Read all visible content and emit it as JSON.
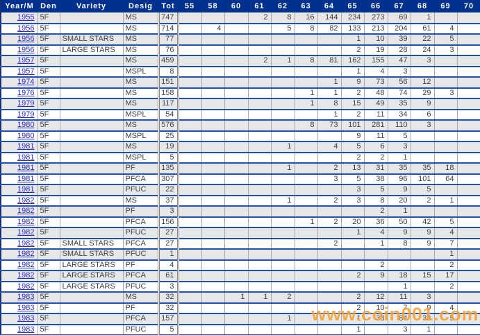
{
  "table": {
    "headers": [
      "Year/M",
      "Den",
      "Variety",
      "Desig",
      "Tot",
      "55",
      "58",
      "60",
      "61",
      "62",
      "63",
      "64",
      "65",
      "66",
      "67",
      "68",
      "69",
      "70"
    ],
    "rows": [
      {
        "year": "1955",
        "den": "5F",
        "variety": "",
        "desig": "MS",
        "tot": "747",
        "grades": {
          "61": "2",
          "62": "8",
          "63": "16",
          "64": "144",
          "65": "234",
          "66": "273",
          "67": "69",
          "68": "1"
        }
      },
      {
        "year": "1956",
        "den": "5F",
        "variety": "",
        "desig": "MS",
        "tot": "714",
        "grades": {
          "58": "4",
          "62": "5",
          "63": "8",
          "64": "82",
          "65": "133",
          "66": "213",
          "67": "204",
          "68": "61",
          "69": "4"
        }
      },
      {
        "year": "1956",
        "den": "5F",
        "variety": "SMALL STARS",
        "desig": "MS",
        "tot": "77",
        "grades": {
          "65": "1",
          "66": "10",
          "67": "39",
          "68": "22",
          "69": "5"
        }
      },
      {
        "year": "1956",
        "den": "5F",
        "variety": "LARGE STARS",
        "desig": "MS",
        "tot": "76",
        "grades": {
          "65": "2",
          "66": "19",
          "67": "28",
          "68": "24",
          "69": "3"
        }
      },
      {
        "year": "1957",
        "den": "5F",
        "variety": "",
        "desig": "MS",
        "tot": "459",
        "grades": {
          "61": "2",
          "62": "1",
          "63": "8",
          "64": "81",
          "65": "162",
          "66": "155",
          "67": "47",
          "68": "3"
        }
      },
      {
        "year": "1957",
        "den": "5F",
        "variety": "",
        "desig": "MSPL",
        "tot": "8",
        "grades": {
          "65": "1",
          "66": "4",
          "67": "3"
        }
      },
      {
        "year": "1974",
        "den": "5F",
        "variety": "",
        "desig": "MS",
        "tot": "151",
        "grades": {
          "64": "1",
          "65": "9",
          "66": "73",
          "67": "56",
          "68": "12"
        }
      },
      {
        "year": "1976",
        "den": "5F",
        "variety": "",
        "desig": "MS",
        "tot": "158",
        "grades": {
          "63": "1",
          "64": "1",
          "65": "2",
          "66": "48",
          "67": "74",
          "68": "29",
          "69": "3"
        }
      },
      {
        "year": "1979",
        "den": "5F",
        "variety": "",
        "desig": "MS",
        "tot": "117",
        "grades": {
          "63": "1",
          "64": "8",
          "65": "15",
          "66": "49",
          "67": "35",
          "68": "9"
        }
      },
      {
        "year": "1979",
        "den": "5F",
        "variety": "",
        "desig": "MSPL",
        "tot": "54",
        "grades": {
          "64": "1",
          "65": "2",
          "66": "11",
          "67": "34",
          "68": "6"
        }
      },
      {
        "year": "1980",
        "den": "5F",
        "variety": "",
        "desig": "MS",
        "tot": "576",
        "grades": {
          "63": "8",
          "64": "73",
          "65": "101",
          "66": "281",
          "67": "110",
          "68": "3"
        }
      },
      {
        "year": "1980",
        "den": "5F",
        "variety": "",
        "desig": "MSPL",
        "tot": "25",
        "grades": {
          "65": "9",
          "66": "11",
          "67": "5"
        }
      },
      {
        "year": "1981",
        "den": "5F",
        "variety": "",
        "desig": "MS",
        "tot": "19",
        "grades": {
          "62": "1",
          "64": "4",
          "65": "5",
          "66": "6",
          "67": "3"
        }
      },
      {
        "year": "1981",
        "den": "5F",
        "variety": "",
        "desig": "MSPL",
        "tot": "5",
        "grades": {
          "65": "2",
          "66": "2",
          "67": "1"
        }
      },
      {
        "year": "1981",
        "den": "5F",
        "variety": "",
        "desig": "PF",
        "tot": "135",
        "grades": {
          "62": "1",
          "64": "2",
          "65": "13",
          "66": "31",
          "67": "35",
          "68": "35",
          "69": "18"
        }
      },
      {
        "year": "1981",
        "den": "5F",
        "variety": "",
        "desig": "PFCA",
        "tot": "307",
        "grades": {
          "64": "3",
          "65": "5",
          "66": "38",
          "67": "96",
          "68": "101",
          "69": "64"
        }
      },
      {
        "year": "1981",
        "den": "5F",
        "variety": "",
        "desig": "PFUC",
        "tot": "22",
        "grades": {
          "65": "3",
          "66": "5",
          "67": "9",
          "68": "5"
        }
      },
      {
        "year": "1982",
        "den": "5F",
        "variety": "",
        "desig": "MS",
        "tot": "37",
        "grades": {
          "62": "1",
          "64": "2",
          "65": "3",
          "66": "8",
          "67": "20",
          "68": "2",
          "69": "1"
        }
      },
      {
        "year": "1982",
        "den": "5F",
        "variety": "",
        "desig": "PF",
        "tot": "3",
        "grades": {
          "66": "2",
          "67": "1"
        }
      },
      {
        "year": "1982",
        "den": "5F",
        "variety": "",
        "desig": "PFCA",
        "tot": "156",
        "grades": {
          "63": "1",
          "64": "2",
          "65": "20",
          "66": "36",
          "67": "50",
          "68": "42",
          "69": "5"
        }
      },
      {
        "year": "1982",
        "den": "5F",
        "variety": "",
        "desig": "PFUC",
        "tot": "27",
        "grades": {
          "65": "1",
          "66": "4",
          "67": "9",
          "68": "9",
          "69": "4"
        }
      },
      {
        "year": "1982",
        "den": "5F",
        "variety": "SMALL STARS",
        "desig": "PFCA",
        "tot": "27",
        "grades": {
          "64": "2",
          "66": "1",
          "67": "8",
          "68": "9",
          "69": "7"
        }
      },
      {
        "year": "1982",
        "den": "5F",
        "variety": "SMALL STARS",
        "desig": "PFUC",
        "tot": "1",
        "grades": {
          "69": "1"
        }
      },
      {
        "year": "1982",
        "den": "5F",
        "variety": "LARGE STARS",
        "desig": "PF",
        "tot": "4",
        "grades": {
          "66": "2",
          "69": "2"
        }
      },
      {
        "year": "1982",
        "den": "5F",
        "variety": "LARGE STARS",
        "desig": "PFCA",
        "tot": "61",
        "grades": {
          "65": "2",
          "66": "9",
          "67": "18",
          "68": "15",
          "69": "17"
        }
      },
      {
        "year": "1982",
        "den": "5F",
        "variety": "LARGE STARS",
        "desig": "PFUC",
        "tot": "3",
        "grades": {
          "67": "1",
          "69": "2"
        }
      },
      {
        "year": "1983",
        "den": "5F",
        "variety": "",
        "desig": "MS",
        "tot": "32",
        "grades": {
          "60": "1",
          "61": "1",
          "62": "2",
          "65": "2",
          "66": "12",
          "67": "11",
          "68": "3"
        }
      },
      {
        "year": "1983",
        "den": "5F",
        "variety": "",
        "desig": "PF",
        "tot": "32",
        "grades": {
          "65": "2",
          "66": "10",
          "67": "7",
          "68": "9",
          "69": "4"
        }
      },
      {
        "year": "1983",
        "den": "5F",
        "variety": "",
        "desig": "PFCA",
        "tot": "157",
        "grades": {
          "62": "1",
          "65": "1",
          "66": "33",
          "67": "84",
          "68": "33",
          "69": "5"
        }
      },
      {
        "year": "1983",
        "den": "5F",
        "variety": "",
        "desig": "PFUC",
        "tot": "5",
        "grades": {
          "65": "1",
          "67": "3",
          "68": "1"
        }
      }
    ]
  },
  "watermark": {
    "text": "www.coin001.com"
  },
  "colors": {
    "header_bg": "#00318f",
    "row_line_blue": "#2151b5",
    "year_link_blue": "#2b2bd4",
    "stripe_gray": "#e7e7e7",
    "watermark_orange": "#f4a030"
  }
}
